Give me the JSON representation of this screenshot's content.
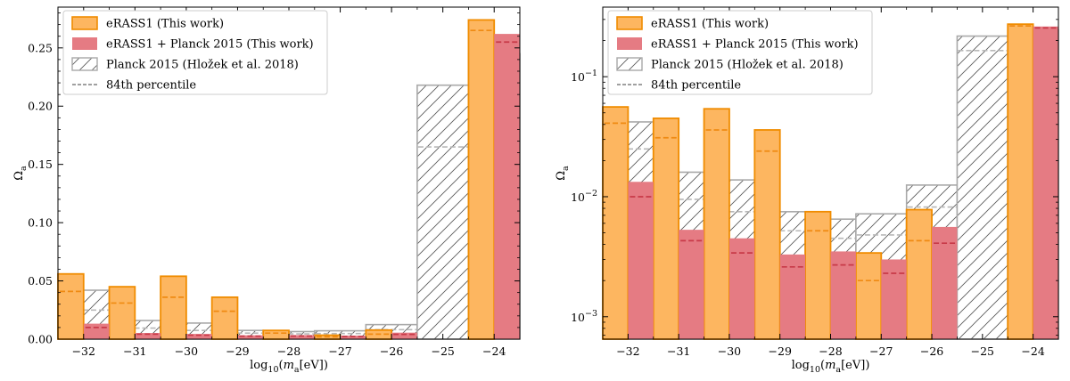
{
  "figure": {
    "shared_xlabel": "log₁₀(mₐ[eV])",
    "shared_ylabel": "Ωₐ",
    "legend": [
      {
        "key": "erass1",
        "label": "eRASS1 (This work)"
      },
      {
        "key": "erass1_planck",
        "label": "eRASS1 + Planck 2015 (This work)"
      },
      {
        "key": "planck",
        "label": "Planck 2015 (Hložek et al. 2018)"
      },
      {
        "key": "p84",
        "label": "84th percentile"
      }
    ]
  },
  "colors": {
    "erass1_fill": "#fdb660",
    "erass1_edge": "#f08c00",
    "erass1_dash": "#ef8a12",
    "planck_combo_fill": "#e57b83",
    "planck_combo_dash": "#c83a48",
    "planck_edge": "#a9a9a9",
    "planck_hatch": "#555555",
    "planck_dash": "#b8b8b8",
    "p84_legend": "#808080"
  },
  "chart_data": [
    {
      "type": "bar",
      "yscale": "linear",
      "title": "",
      "xlabel": "log₁₀(mₐ[eV])",
      "ylabel": "Ωₐ",
      "xlim": [
        -32.5,
        -23.5
      ],
      "ylim": [
        0,
        0.285
      ],
      "yticks": [
        0,
        0.05,
        0.1,
        0.15,
        0.2,
        0.25
      ],
      "ytick_labels": [
        "0.00",
        "0.05",
        "0.10",
        "0.15",
        "0.20",
        "0.25"
      ],
      "xticks": [
        -32,
        -31,
        -30,
        -29,
        -28,
        -27,
        -26,
        -25,
        -24
      ],
      "xtick_labels": [
        "−32",
        "−31",
        "−30",
        "−29",
        "−28",
        "−27",
        "−26",
        "−25",
        "−24"
      ],
      "legend_position": "top-left",
      "series": [
        {
          "name": "eRASS1 (This work)",
          "key": "erass1",
          "x": [
            -32,
            -31,
            -30,
            -29,
            -28,
            -27,
            -26,
            -25,
            -24
          ],
          "values": [
            0.056,
            0.045,
            0.054,
            0.036,
            0.0075,
            0.0034,
            0.0078,
            null,
            0.274
          ],
          "p84": [
            0.041,
            0.031,
            0.036,
            0.024,
            0.0052,
            0.002,
            0.0043,
            null,
            0.265
          ]
        },
        {
          "name": "eRASS1 + Planck 2015 (This work)",
          "key": "erass1_planck",
          "x": [
            -32,
            -31,
            -30,
            -29,
            -28,
            -27,
            -26,
            -25,
            -24
          ],
          "values": [
            0.0133,
            0.0053,
            0.0045,
            0.0033,
            0.0035,
            0.003,
            0.0056,
            null,
            0.262
          ],
          "p84": [
            0.01,
            0.0043,
            0.0034,
            0.0026,
            0.0027,
            0.0023,
            0.0041,
            null,
            0.255
          ]
        },
        {
          "name": "Planck 2015 (Hložek et al. 2018)",
          "key": "planck",
          "x": [
            -32,
            -31,
            -30,
            -29,
            -28,
            -27,
            -26,
            -25,
            -24
          ],
          "values": [
            0.042,
            0.016,
            0.0138,
            0.0075,
            0.0065,
            0.0072,
            0.0125,
            0.218,
            0.245
          ],
          "p84": [
            0.025,
            0.0095,
            0.0075,
            0.0052,
            0.0045,
            0.0048,
            0.0082,
            0.165,
            0.215
          ]
        }
      ]
    },
    {
      "type": "bar",
      "yscale": "log",
      "title": "",
      "xlabel": "log₁₀(mₐ[eV])",
      "ylabel": "Ωₐ",
      "xlim": [
        -32.5,
        -23.5
      ],
      "ylim": [
        0.00065,
        0.38
      ],
      "ytick_labels": [
        "10⁻³",
        "10⁻²",
        "10⁻¹"
      ],
      "xticks": [
        -32,
        -31,
        -30,
        -29,
        -28,
        -27,
        -26,
        -25,
        -24
      ],
      "xtick_labels": [
        "−32",
        "−31",
        "−30",
        "−29",
        "−28",
        "−27",
        "−26",
        "−25",
        "−24"
      ],
      "legend_position": "top-left",
      "series": [
        {
          "name": "eRASS1 (This work)",
          "key": "erass1",
          "x": [
            -32,
            -31,
            -30,
            -29,
            -28,
            -27,
            -26,
            -25,
            -24
          ],
          "values": [
            0.056,
            0.045,
            0.054,
            0.036,
            0.0075,
            0.0034,
            0.0078,
            null,
            0.274
          ],
          "p84": [
            0.041,
            0.031,
            0.036,
            0.024,
            0.0052,
            0.002,
            0.0043,
            null,
            0.265
          ]
        },
        {
          "name": "eRASS1 + Planck 2015 (This work)",
          "key": "erass1_planck",
          "x": [
            -32,
            -31,
            -30,
            -29,
            -28,
            -27,
            -26,
            -25,
            -24
          ],
          "values": [
            0.0133,
            0.0053,
            0.0045,
            0.0033,
            0.0035,
            0.003,
            0.0056,
            null,
            0.262
          ],
          "p84": [
            0.01,
            0.0043,
            0.0034,
            0.0026,
            0.0027,
            0.0023,
            0.0041,
            null,
            0.255
          ]
        },
        {
          "name": "Planck 2015 (Hložek et al. 2018)",
          "key": "planck",
          "x": [
            -32,
            -31,
            -30,
            -29,
            -28,
            -27,
            -26,
            -25,
            -24
          ],
          "values": [
            0.042,
            0.016,
            0.0138,
            0.0075,
            0.0065,
            0.0072,
            0.0125,
            0.218,
            0.245
          ],
          "p84": [
            0.025,
            0.0095,
            0.0075,
            0.0052,
            0.0045,
            0.0048,
            0.0082,
            0.165,
            0.215
          ]
        }
      ]
    }
  ]
}
